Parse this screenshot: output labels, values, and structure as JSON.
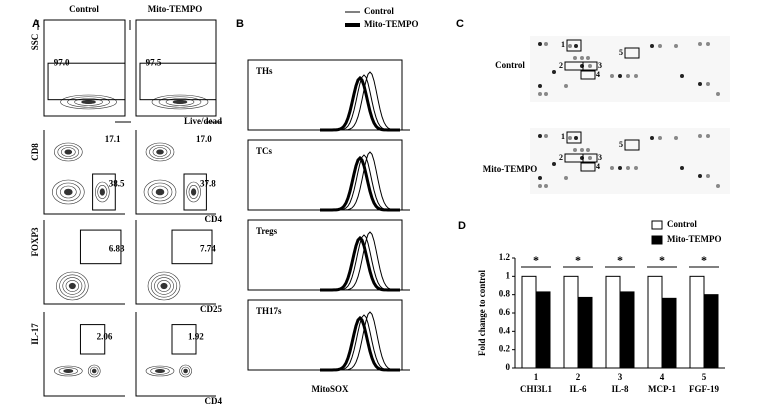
{
  "panel_a": {
    "label": "A",
    "columns": [
      "Control",
      "Mito-TEMPO"
    ],
    "rows": [
      {
        "y_axis": "SSC",
        "x_axis": "Live/dead",
        "gates": [
          [
            "97.0"
          ],
          [
            "97.5"
          ]
        ]
      },
      {
        "y_axis": "CD8",
        "x_axis": "CD4",
        "gates": [
          [
            "17.1",
            "38.5"
          ],
          [
            "17.0",
            "37.8"
          ]
        ]
      },
      {
        "y_axis": "FOXP3",
        "x_axis": "CD25",
        "gates": [
          [
            "6.83"
          ],
          [
            "7.74"
          ]
        ]
      },
      {
        "y_axis": "IL-17",
        "x_axis": "CD4",
        "gates": [
          [
            "2.06"
          ],
          [
            "1.92"
          ]
        ]
      }
    ]
  },
  "panel_b": {
    "label": "B",
    "legend": [
      "Control",
      "Mito-TEMPO"
    ],
    "populations": [
      "THs",
      "TCs",
      "Tregs",
      "TH17s"
    ],
    "x_axis": "MitoSOX"
  },
  "panel_c": {
    "label": "C",
    "rows": [
      "Control",
      "Mito-TEMPO"
    ],
    "spots": [
      "1",
      "2",
      "3",
      "4",
      "5"
    ]
  },
  "chart_data": {
    "type": "bar",
    "panel_label": "D",
    "y_label": "Fold change to control",
    "categories": [
      "CHI3L1",
      "IL-6",
      "IL-8",
      "MCP-1",
      "FGF-19"
    ],
    "category_numbers": [
      "1",
      "2",
      "3",
      "4",
      "5"
    ],
    "series": [
      {
        "name": "Control",
        "color": "#ffffff",
        "values": [
          1,
          1,
          1,
          1,
          1
        ]
      },
      {
        "name": "Mito-TEMPO",
        "color": "#000000",
        "values": [
          0.83,
          0.77,
          0.83,
          0.76,
          0.8
        ]
      }
    ],
    "significance": [
      "*",
      "*",
      "*",
      "*",
      "*"
    ],
    "ylim": [
      0,
      1.2
    ],
    "yticks": [
      0,
      0.2,
      0.4,
      0.6,
      0.8,
      1,
      1.2
    ]
  }
}
